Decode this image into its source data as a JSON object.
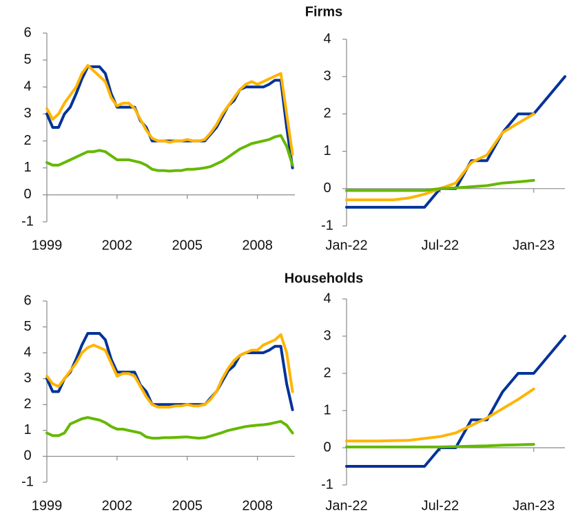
{
  "chart_data": [
    {
      "type": "line",
      "title": "Firms",
      "x": [
        1999,
        1999.25,
        1999.5,
        1999.75,
        2000,
        2000.25,
        2000.5,
        2000.75,
        2001,
        2001.25,
        2001.5,
        2001.75,
        2002,
        2002.25,
        2002.5,
        2002.75,
        2003,
        2003.25,
        2003.5,
        2003.75,
        2004,
        2004.25,
        2004.5,
        2004.75,
        2005,
        2005.25,
        2005.5,
        2005.75,
        2006,
        2006.25,
        2006.5,
        2006.75,
        2007,
        2007.25,
        2007.5,
        2007.75,
        2008,
        2008.25,
        2008.5,
        2008.75,
        2009,
        2009.25,
        2009.5
      ],
      "xlim": [
        1999,
        2009.6
      ],
      "xticks": [
        1999,
        2002,
        2005,
        2008
      ],
      "ylim": [
        -1,
        6
      ],
      "yticks": [
        -1,
        0,
        1,
        2,
        3,
        4,
        5,
        6
      ],
      "series": [
        {
          "color": "#003299",
          "values": [
            3.0,
            2.5,
            2.5,
            3.0,
            3.25,
            3.75,
            4.3,
            4.75,
            4.75,
            4.75,
            4.5,
            3.75,
            3.25,
            3.25,
            3.25,
            3.25,
            2.75,
            2.5,
            2.0,
            2.0,
            2.0,
            2.0,
            2.0,
            2.0,
            2.0,
            2.0,
            2.0,
            2.0,
            2.25,
            2.5,
            2.9,
            3.3,
            3.5,
            3.9,
            4.0,
            4.0,
            4.0,
            4.0,
            4.1,
            4.25,
            4.25,
            2.5,
            1.0
          ]
        },
        {
          "color": "#ffb400",
          "values": [
            3.2,
            2.8,
            3.0,
            3.4,
            3.7,
            4.0,
            4.5,
            4.8,
            4.6,
            4.4,
            4.2,
            3.6,
            3.3,
            3.4,
            3.4,
            3.2,
            2.8,
            2.4,
            2.1,
            2.0,
            2.0,
            1.95,
            2.0,
            2.0,
            2.05,
            2.0,
            2.0,
            2.05,
            2.3,
            2.6,
            3.0,
            3.3,
            3.6,
            3.9,
            4.1,
            4.2,
            4.1,
            4.2,
            4.3,
            4.4,
            4.5,
            3.0,
            1.5
          ]
        },
        {
          "color": "#65b800",
          "values": [
            1.2,
            1.1,
            1.1,
            1.2,
            1.3,
            1.4,
            1.5,
            1.6,
            1.6,
            1.65,
            1.6,
            1.45,
            1.3,
            1.3,
            1.3,
            1.25,
            1.2,
            1.1,
            0.95,
            0.9,
            0.9,
            0.88,
            0.9,
            0.9,
            0.95,
            0.95,
            0.97,
            1.0,
            1.05,
            1.15,
            1.25,
            1.4,
            1.55,
            1.7,
            1.8,
            1.9,
            1.95,
            2.0,
            2.05,
            2.15,
            2.2,
            1.8,
            1.1
          ]
        }
      ]
    },
    {
      "type": "line",
      "categories": [
        "Jan-22",
        null,
        null,
        null,
        null,
        null,
        "Jul-22",
        null,
        null,
        null,
        null,
        null,
        "Jan-23",
        null,
        null
      ],
      "ylim": [
        -1,
        4
      ],
      "yticks": [
        -1,
        0,
        1,
        2,
        3,
        4
      ],
      "series": [
        {
          "color": "#003299",
          "values": [
            -0.5,
            -0.5,
            -0.5,
            -0.5,
            -0.5,
            -0.5,
            0,
            0,
            0.75,
            0.75,
            1.5,
            2,
            2,
            2.5,
            3
          ]
        },
        {
          "color": "#ffb400",
          "values": [
            -0.3,
            -0.3,
            -0.3,
            -0.3,
            -0.25,
            -0.15,
            0.0,
            0.15,
            0.7,
            0.9,
            1.5,
            1.75,
            2.0,
            null,
            null
          ]
        },
        {
          "color": "#65b800",
          "values": [
            -0.05,
            -0.05,
            -0.05,
            -0.05,
            -0.05,
            -0.05,
            0,
            0.02,
            0.05,
            0.08,
            0.15,
            0.18,
            0.22,
            null,
            null
          ]
        }
      ]
    },
    {
      "type": "line",
      "title": "Households",
      "x": [
        1999,
        1999.25,
        1999.5,
        1999.75,
        2000,
        2000.25,
        2000.5,
        2000.75,
        2001,
        2001.25,
        2001.5,
        2001.75,
        2002,
        2002.25,
        2002.5,
        2002.75,
        2003,
        2003.25,
        2003.5,
        2003.75,
        2004,
        2004.25,
        2004.5,
        2004.75,
        2005,
        2005.25,
        2005.5,
        2005.75,
        2006,
        2006.25,
        2006.5,
        2006.75,
        2007,
        2007.25,
        2007.5,
        2007.75,
        2008,
        2008.25,
        2008.5,
        2008.75,
        2009,
        2009.25,
        2009.5
      ],
      "xlim": [
        1999,
        2009.6
      ],
      "xticks": [
        1999,
        2002,
        2005,
        2008
      ],
      "ylim": [
        -1,
        6
      ],
      "yticks": [
        -1,
        0,
        1,
        2,
        3,
        4,
        5,
        6
      ],
      "series": [
        {
          "color": "#003299",
          "values": [
            3.0,
            2.5,
            2.5,
            3.0,
            3.25,
            3.75,
            4.3,
            4.75,
            4.75,
            4.75,
            4.5,
            3.75,
            3.25,
            3.25,
            3.25,
            3.25,
            2.75,
            2.5,
            2.0,
            2.0,
            2.0,
            2.0,
            2.0,
            2.0,
            2.0,
            2.0,
            2.0,
            2.0,
            2.25,
            2.5,
            2.9,
            3.3,
            3.5,
            3.9,
            4.0,
            4.0,
            4.0,
            4.0,
            4.1,
            4.25,
            4.25,
            2.8,
            1.8
          ]
        },
        {
          "color": "#ffb400",
          "values": [
            3.1,
            2.8,
            2.7,
            3.0,
            3.3,
            3.6,
            4.0,
            4.2,
            4.3,
            4.2,
            4.1,
            3.6,
            3.1,
            3.2,
            3.2,
            3.1,
            2.7,
            2.3,
            2.0,
            1.9,
            1.9,
            1.9,
            1.95,
            1.95,
            2.0,
            1.95,
            1.95,
            2.0,
            2.2,
            2.5,
            3.0,
            3.4,
            3.7,
            3.9,
            4.0,
            4.1,
            4.1,
            4.3,
            4.4,
            4.5,
            4.7,
            4.0,
            2.5
          ]
        },
        {
          "color": "#65b800",
          "values": [
            0.9,
            0.8,
            0.8,
            0.9,
            1.25,
            1.35,
            1.45,
            1.5,
            1.45,
            1.4,
            1.3,
            1.15,
            1.05,
            1.05,
            1.0,
            0.95,
            0.9,
            0.75,
            0.7,
            0.7,
            0.72,
            0.72,
            0.73,
            0.74,
            0.75,
            0.72,
            0.7,
            0.72,
            0.78,
            0.85,
            0.92,
            1.0,
            1.05,
            1.1,
            1.15,
            1.18,
            1.2,
            1.22,
            1.25,
            1.3,
            1.35,
            1.2,
            0.9
          ]
        }
      ]
    },
    {
      "type": "line",
      "categories": [
        "Jan-22",
        null,
        null,
        null,
        null,
        null,
        "Jul-22",
        null,
        null,
        null,
        null,
        null,
        "Jan-23",
        null,
        null
      ],
      "ylim": [
        -1,
        4
      ],
      "yticks": [
        -1,
        0,
        1,
        2,
        3,
        4
      ],
      "series": [
        {
          "color": "#003299",
          "values": [
            -0.5,
            -0.5,
            -0.5,
            -0.5,
            -0.5,
            -0.5,
            0,
            0,
            0.75,
            0.75,
            1.5,
            2,
            2,
            2.5,
            3
          ]
        },
        {
          "color": "#ffb400",
          "values": [
            0.18,
            0.18,
            0.18,
            0.19,
            0.2,
            0.25,
            0.3,
            0.4,
            0.6,
            0.8,
            1.05,
            1.3,
            1.58,
            null,
            null
          ]
        },
        {
          "color": "#65b800",
          "values": [
            0.02,
            0.02,
            0.02,
            0.02,
            0.02,
            0.02,
            0.02,
            0.03,
            0.04,
            0.05,
            0.07,
            0.08,
            0.09,
            null,
            null
          ]
        }
      ]
    }
  ]
}
